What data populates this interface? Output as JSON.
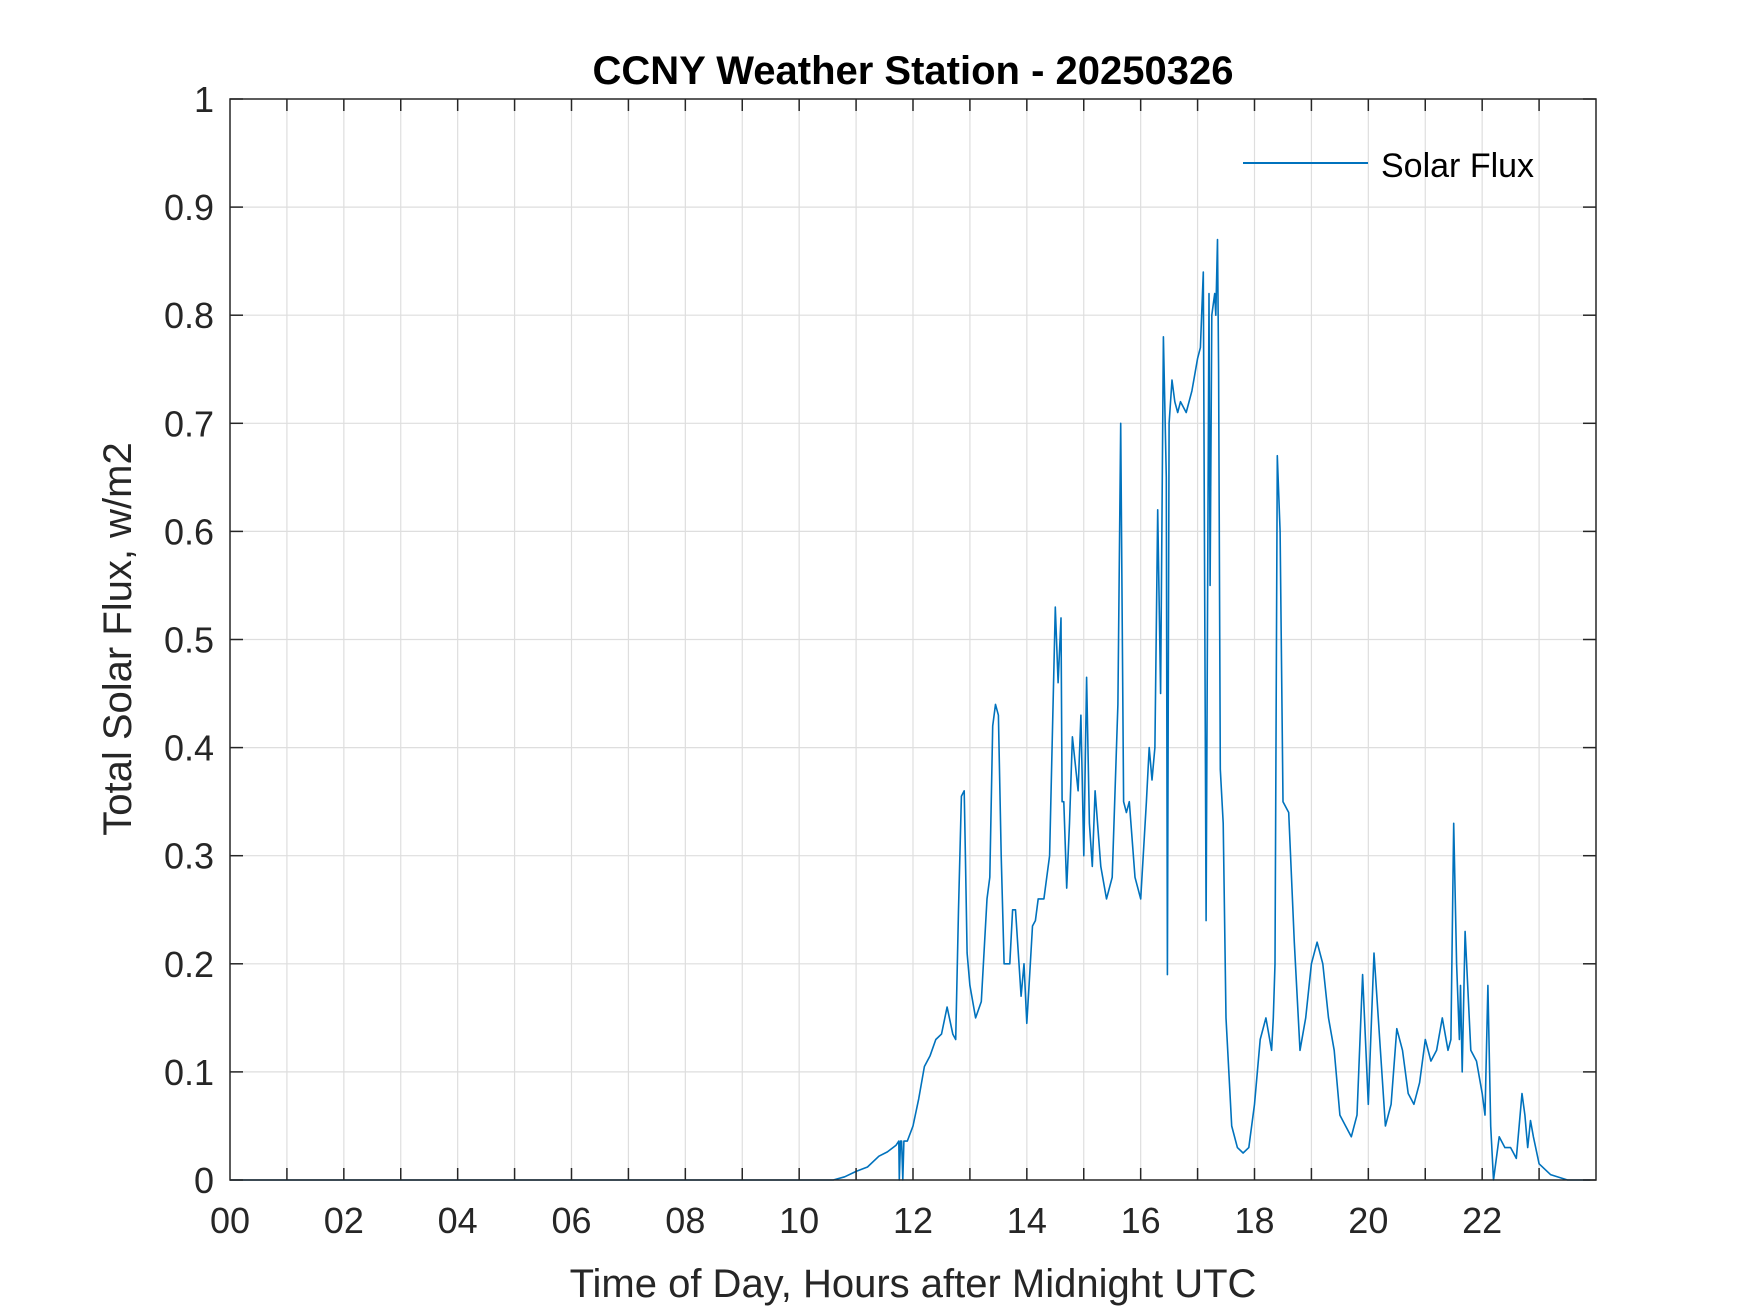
{
  "chart_data": {
    "type": "line",
    "title": "CCNY Weather Station - 20250326",
    "xlabel": "Time of Day, Hours after Midnight UTC",
    "ylabel": "Total Solar Flux, w/m2",
    "xlim": [
      0,
      24
    ],
    "ylim": [
      0,
      1
    ],
    "x_ticks": [
      0,
      2,
      4,
      6,
      8,
      10,
      12,
      14,
      16,
      18,
      20,
      22
    ],
    "x_tick_labels": [
      "00",
      "02",
      "04",
      "06",
      "08",
      "10",
      "12",
      "14",
      "16",
      "18",
      "20",
      "22"
    ],
    "y_ticks": [
      0,
      0.1,
      0.2,
      0.3,
      0.4,
      0.5,
      0.6,
      0.7,
      0.8,
      0.9,
      1
    ],
    "y_tick_labels": [
      "0",
      "0.1",
      "0.2",
      "0.3",
      "0.4",
      "0.5",
      "0.6",
      "0.7",
      "0.8",
      "0.9",
      "1"
    ],
    "grid": true,
    "legend": {
      "position": "top-right",
      "entries": [
        "Solar Flux"
      ]
    },
    "series": [
      {
        "name": "Solar Flux",
        "color": "#0072BD",
        "x": [
          0,
          10.6,
          10.8,
          11.0,
          11.2,
          11.4,
          11.55,
          11.7,
          11.75,
          11.76,
          11.78,
          11.8,
          11.82,
          11.84,
          11.9,
          12.0,
          12.1,
          12.2,
          12.3,
          12.4,
          12.5,
          12.6,
          12.7,
          12.75,
          12.8,
          12.85,
          12.9,
          12.92,
          12.95,
          13.0,
          13.1,
          13.2,
          13.3,
          13.35,
          13.4,
          13.45,
          13.5,
          13.55,
          13.6,
          13.7,
          13.75,
          13.8,
          13.9,
          13.95,
          14.0,
          14.05,
          14.1,
          14.15,
          14.2,
          14.3,
          14.4,
          14.5,
          14.55,
          14.6,
          14.62,
          14.65,
          14.7,
          14.75,
          14.8,
          14.9,
          14.95,
          15.0,
          15.05,
          15.1,
          15.15,
          15.2,
          15.3,
          15.4,
          15.5,
          15.6,
          15.65,
          15.7,
          15.75,
          15.8,
          15.9,
          16.0,
          16.1,
          16.15,
          16.2,
          16.25,
          16.3,
          16.35,
          16.4,
          16.45,
          16.47,
          16.5,
          16.55,
          16.6,
          16.65,
          16.7,
          16.8,
          16.9,
          17.0,
          17.05,
          17.1,
          17.15,
          17.2,
          17.22,
          17.25,
          17.3,
          17.32,
          17.35,
          17.37,
          17.4,
          17.45,
          17.5,
          17.6,
          17.7,
          17.8,
          17.9,
          18.0,
          18.1,
          18.2,
          18.3,
          18.33,
          18.36,
          18.4,
          18.45,
          18.5,
          18.6,
          18.7,
          18.8,
          18.9,
          19.0,
          19.1,
          19.2,
          19.3,
          19.4,
          19.5,
          19.6,
          19.7,
          19.8,
          19.9,
          20.0,
          20.1,
          20.2,
          20.3,
          20.4,
          20.5,
          20.6,
          20.7,
          20.8,
          20.9,
          21.0,
          21.1,
          21.2,
          21.3,
          21.4,
          21.45,
          21.5,
          21.55,
          21.6,
          21.62,
          21.65,
          21.7,
          21.8,
          21.9,
          22.0,
          22.05,
          22.1,
          22.15,
          22.2,
          22.3,
          22.4,
          22.5,
          22.55,
          22.6,
          22.7,
          22.75,
          22.8,
          22.85,
          22.9,
          23.0,
          23.2,
          23.5,
          23.9
        ],
        "values": [
          0,
          0,
          0.003,
          0.008,
          0.012,
          0.022,
          0.026,
          0.032,
          0.036,
          0.0,
          0.036,
          0.036,
          0.0,
          0.036,
          0.036,
          0.05,
          0.075,
          0.105,
          0.115,
          0.13,
          0.135,
          0.16,
          0.135,
          0.13,
          0.25,
          0.355,
          0.36,
          0.3,
          0.21,
          0.18,
          0.15,
          0.165,
          0.26,
          0.28,
          0.42,
          0.44,
          0.43,
          0.3,
          0.2,
          0.2,
          0.25,
          0.25,
          0.17,
          0.2,
          0.145,
          0.19,
          0.235,
          0.24,
          0.26,
          0.26,
          0.3,
          0.53,
          0.46,
          0.52,
          0.35,
          0.35,
          0.27,
          0.33,
          0.41,
          0.36,
          0.43,
          0.3,
          0.465,
          0.33,
          0.29,
          0.36,
          0.29,
          0.26,
          0.28,
          0.44,
          0.7,
          0.35,
          0.34,
          0.35,
          0.28,
          0.26,
          0.35,
          0.4,
          0.37,
          0.4,
          0.62,
          0.45,
          0.78,
          0.65,
          0.19,
          0.7,
          0.74,
          0.72,
          0.71,
          0.72,
          0.71,
          0.73,
          0.76,
          0.77,
          0.84,
          0.24,
          0.82,
          0.55,
          0.8,
          0.82,
          0.8,
          0.87,
          0.75,
          0.38,
          0.33,
          0.15,
          0.05,
          0.03,
          0.025,
          0.03,
          0.07,
          0.13,
          0.15,
          0.12,
          0.15,
          0.2,
          0.67,
          0.6,
          0.35,
          0.34,
          0.22,
          0.12,
          0.15,
          0.2,
          0.22,
          0.2,
          0.15,
          0.12,
          0.06,
          0.05,
          0.04,
          0.06,
          0.19,
          0.07,
          0.21,
          0.13,
          0.05,
          0.07,
          0.14,
          0.12,
          0.08,
          0.07,
          0.09,
          0.13,
          0.11,
          0.12,
          0.15,
          0.12,
          0.13,
          0.33,
          0.2,
          0.13,
          0.18,
          0.1,
          0.23,
          0.12,
          0.11,
          0.08,
          0.06,
          0.18,
          0.05,
          0.0,
          0.04,
          0.03,
          0.03,
          0.025,
          0.02,
          0.08,
          0.06,
          0.03,
          0.055,
          0.04,
          0.015,
          0.005,
          0,
          0
        ]
      }
    ]
  }
}
